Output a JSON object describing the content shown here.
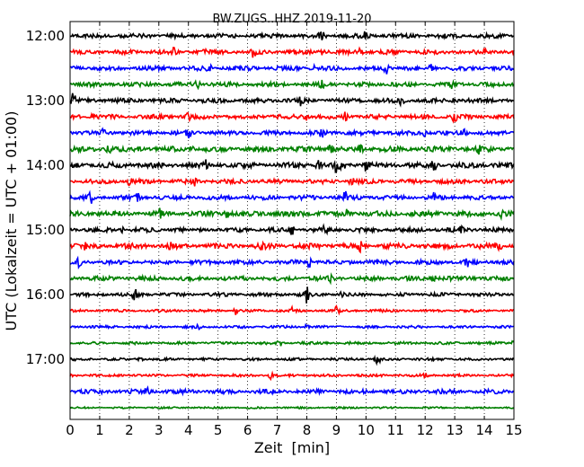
{
  "chart_data": {
    "type": "line",
    "title": "BW.ZUGS..HHZ 2019-11-20",
    "xlabel": "Zeit  [min]",
    "ylabel": "UTC (Lokalzeit = UTC + 01:00)",
    "xlim": [
      0,
      15
    ],
    "x_ticks": [
      "0",
      "1",
      "2",
      "3",
      "4",
      "5",
      "6",
      "7",
      "8",
      "9",
      "10",
      "11",
      "12",
      "13",
      "14",
      "15"
    ],
    "y_tick_labels": [
      "12:00",
      "13:00",
      "14:00",
      "15:00",
      "16:00",
      "17:00"
    ],
    "grid": "vertical dotted",
    "colors": [
      "#000000",
      "#ff0000",
      "#0000ff",
      "#008000"
    ],
    "traces": [
      {
        "start": "12:00",
        "color": "#000000",
        "amp": 2.5,
        "spikes": [
          [
            8.5,
            6
          ],
          [
            10.0,
            5
          ]
        ]
      },
      {
        "start": "12:15",
        "color": "#ff0000",
        "amp": 2.5,
        "spikes": [
          [
            3.5,
            4
          ],
          [
            4.5,
            4
          ],
          [
            6.2,
            6
          ],
          [
            8.5,
            4
          ],
          [
            9.8,
            4
          ],
          [
            14.0,
            5
          ]
        ]
      },
      {
        "start": "12:30",
        "color": "#0000ff",
        "amp": 2.5,
        "spikes": [
          [
            4.7,
            4
          ],
          [
            8.2,
            4
          ],
          [
            10.7,
            5
          ],
          [
            12.2,
            4
          ]
        ]
      },
      {
        "start": "12:45",
        "color": "#008000",
        "amp": 2.5,
        "spikes": [
          [
            4.3,
            4
          ],
          [
            8.5,
            4
          ],
          [
            12.9,
            4
          ]
        ]
      },
      {
        "start": "13:00",
        "color": "#000000",
        "amp": 2.5,
        "spikes": [
          [
            0.1,
            8
          ],
          [
            7.8,
            5
          ],
          [
            11.2,
            6
          ],
          [
            13.0,
            4
          ]
        ]
      },
      {
        "start": "13:15",
        "color": "#ff0000",
        "amp": 2.5,
        "spikes": [
          [
            0.8,
            4
          ],
          [
            4.0,
            4
          ],
          [
            8.0,
            4
          ],
          [
            9.3,
            5
          ],
          [
            13.0,
            6
          ]
        ]
      },
      {
        "start": "13:30",
        "color": "#0000ff",
        "amp": 2.5,
        "spikes": [
          [
            1.1,
            4
          ],
          [
            4.0,
            5
          ],
          [
            8.5,
            4
          ],
          [
            12.0,
            4
          ],
          [
            13.3,
            4
          ]
        ]
      },
      {
        "start": "13:45",
        "color": "#008000",
        "amp": 3,
        "spikes": [
          [
            1.3,
            4
          ],
          [
            4.1,
            4
          ],
          [
            8.8,
            6
          ],
          [
            9.8,
            4
          ],
          [
            13.8,
            5
          ]
        ]
      },
      {
        "start": "14:00",
        "color": "#000000",
        "amp": 3,
        "spikes": [
          [
            4.6,
            5
          ],
          [
            8.4,
            6
          ],
          [
            9.0,
            7
          ],
          [
            9.2,
            8
          ],
          [
            10.0,
            6
          ],
          [
            12.3,
            6
          ]
        ]
      },
      {
        "start": "14:15",
        "color": "#ff0000",
        "amp": 2.5,
        "spikes": [
          [
            2.0,
            4
          ],
          [
            4.2,
            4
          ],
          [
            9.5,
            5
          ]
        ]
      },
      {
        "start": "14:30",
        "color": "#0000ff",
        "amp": 2.5,
        "spikes": [
          [
            0.7,
            6
          ],
          [
            2.3,
            4
          ],
          [
            9.3,
            6
          ],
          [
            12.3,
            4
          ]
        ]
      },
      {
        "start": "14:45",
        "color": "#008000",
        "amp": 3,
        "spikes": [
          [
            3.0,
            5
          ],
          [
            5.3,
            4
          ],
          [
            9.4,
            5
          ],
          [
            14.6,
            6
          ]
        ]
      },
      {
        "start": "15:00",
        "color": "#000000",
        "amp": 2.5,
        "spikes": [
          [
            1.8,
            4
          ],
          [
            7.5,
            6
          ],
          [
            8.6,
            4
          ],
          [
            13.2,
            4
          ]
        ]
      },
      {
        "start": "15:15",
        "color": "#ff0000",
        "amp": 3,
        "spikes": [
          [
            0.5,
            4
          ],
          [
            3.4,
            5
          ],
          [
            6.5,
            4
          ],
          [
            9.8,
            5
          ],
          [
            14.5,
            5
          ]
        ]
      },
      {
        "start": "15:30",
        "color": "#0000ff",
        "amp": 2.5,
        "spikes": [
          [
            0.3,
            5
          ],
          [
            8.1,
            6
          ],
          [
            13.4,
            6
          ]
        ]
      },
      {
        "start": "15:45",
        "color": "#008000",
        "amp": 2.5,
        "spikes": [
          [
            8.8,
            4
          ],
          [
            12.3,
            5
          ]
        ]
      },
      {
        "start": "16:00",
        "color": "#000000",
        "amp": 2,
        "spikes": [
          [
            2.2,
            7
          ],
          [
            8.0,
            12
          ],
          [
            9.2,
            4
          ]
        ]
      },
      {
        "start": "16:15",
        "color": "#ff0000",
        "amp": 1.5,
        "spikes": [
          [
            5.6,
            4
          ],
          [
            7.5,
            4
          ],
          [
            9.0,
            4
          ]
        ]
      },
      {
        "start": "16:30",
        "color": "#0000ff",
        "amp": 1.5,
        "spikes": [
          [
            4.3,
            3
          ],
          [
            8.0,
            3
          ]
        ]
      },
      {
        "start": "16:45",
        "color": "#008000",
        "amp": 1.5,
        "spikes": [
          [
            7.1,
            4
          ],
          [
            15.0,
            3
          ]
        ]
      },
      {
        "start": "17:00",
        "color": "#000000",
        "amp": 1.5,
        "spikes": [
          [
            2.4,
            3
          ],
          [
            10.4,
            5
          ]
        ]
      },
      {
        "start": "17:15",
        "color": "#ff0000",
        "amp": 1.5,
        "spikes": [
          [
            6.8,
            5
          ],
          [
            12.0,
            3
          ]
        ]
      },
      {
        "start": "17:30",
        "color": "#0000ff",
        "amp": 2.5,
        "spikes": [
          [
            1.0,
            3
          ],
          [
            2.6,
            6
          ]
        ]
      },
      {
        "start": "17:45",
        "color": "#008000",
        "amp": 1,
        "spikes": []
      }
    ]
  }
}
